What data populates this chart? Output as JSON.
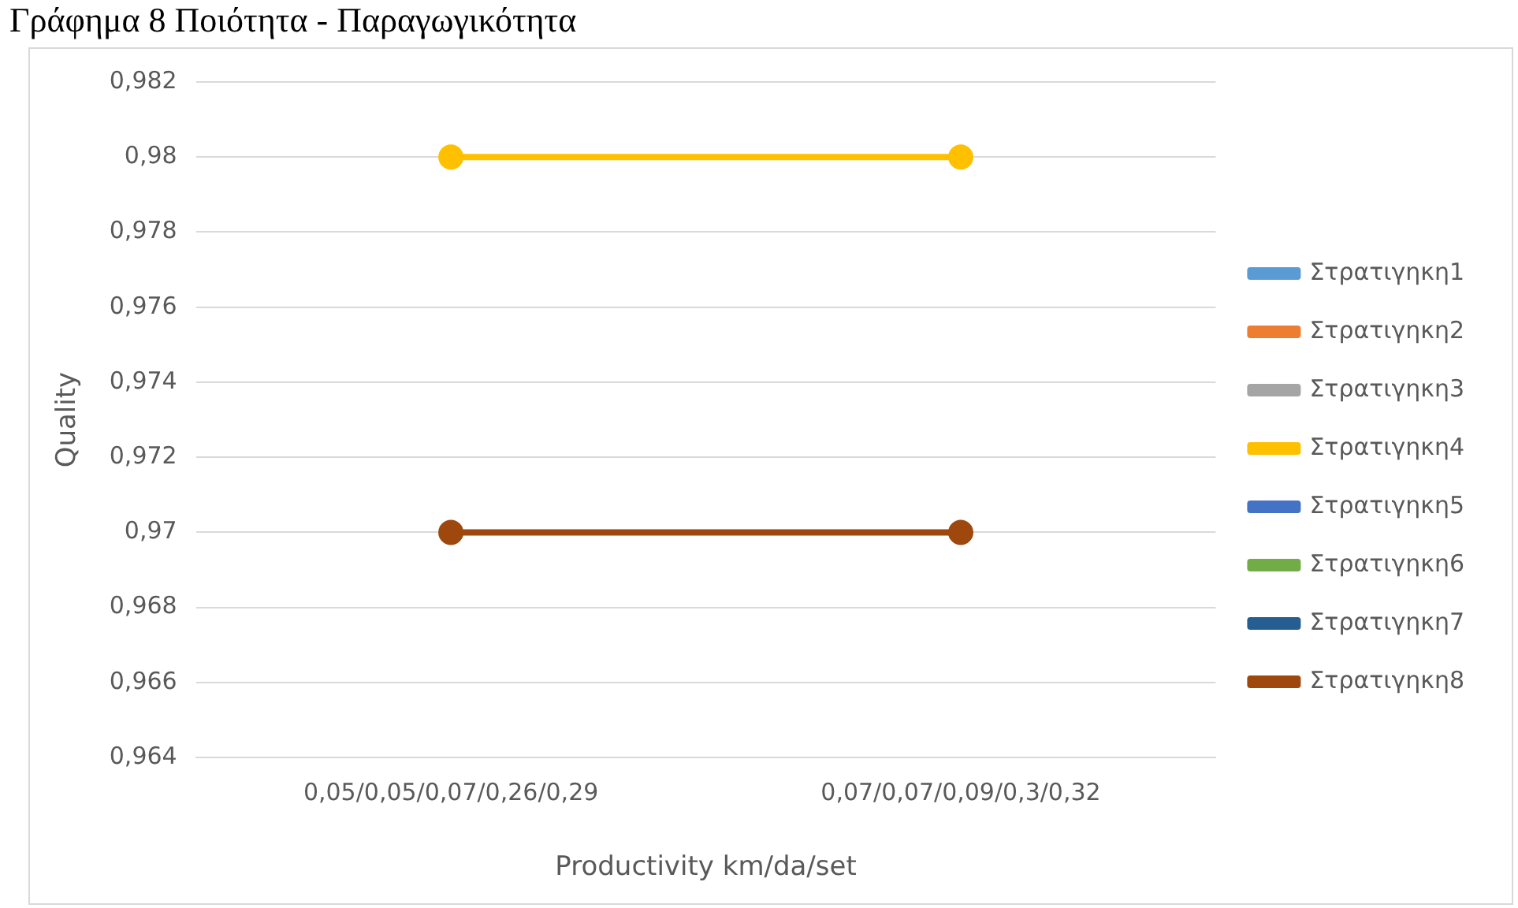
{
  "chart_data": {
    "type": "line",
    "title": "Γράφημα 8 Ποιότητα - Παραγωγικότητα",
    "xlabel": "Productivity km/da/set",
    "ylabel": "Quality",
    "categories": [
      "0,05/0,05/0,07/0,26/0,29",
      "0,07/0,07/0,09/0,3/0,32"
    ],
    "series": [
      {
        "name": "Στρατιγηκη1",
        "color": "#5b9bd5",
        "values": [
          null,
          null
        ]
      },
      {
        "name": "Στρατιγηκη2",
        "color": "#ed7d31",
        "values": [
          null,
          null
        ]
      },
      {
        "name": "Στρατιγηκη3",
        "color": "#a5a5a5",
        "values": [
          null,
          null
        ]
      },
      {
        "name": "Στρατιγηκη4",
        "color": "#ffc000",
        "values": [
          0.98,
          0.98
        ]
      },
      {
        "name": "Στρατιγηκη5",
        "color": "#4472c4",
        "values": [
          null,
          null
        ]
      },
      {
        "name": "Στρατιγηκη6",
        "color": "#70ad47",
        "values": [
          null,
          null
        ]
      },
      {
        "name": "Στρατιγηκη7",
        "color": "#255e91",
        "values": [
          null,
          null
        ]
      },
      {
        "name": "Στρατιγηκη8",
        "color": "#9e480e",
        "values": [
          0.97,
          0.97
        ]
      }
    ],
    "ylim": [
      0.964,
      0.982
    ],
    "yticks": [
      {
        "value": 0.964,
        "label": "0,964"
      },
      {
        "value": 0.966,
        "label": "0,966"
      },
      {
        "value": 0.968,
        "label": "0,968"
      },
      {
        "value": 0.97,
        "label": "0,97"
      },
      {
        "value": 0.972,
        "label": "0,972"
      },
      {
        "value": 0.974,
        "label": "0,974"
      },
      {
        "value": 0.976,
        "label": "0,976"
      },
      {
        "value": 0.978,
        "label": "0,978"
      },
      {
        "value": 0.98,
        "label": "0,98"
      },
      {
        "value": 0.982,
        "label": "0,982"
      }
    ],
    "grid": "y",
    "legend": "right",
    "marker": "circle",
    "line_style": "solid"
  }
}
